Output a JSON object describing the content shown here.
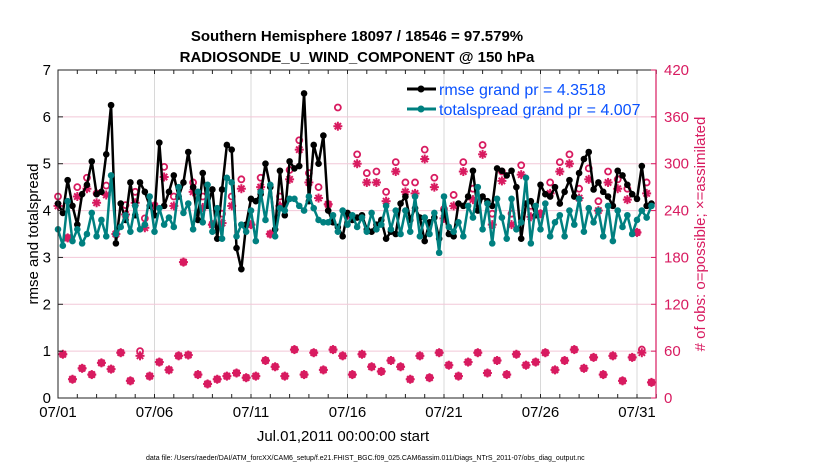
{
  "chart_data": {
    "type": "line",
    "title": [
      "Southern Hemisphere 18097 / 18546 = 97.579%",
      "RADIOSONDE_U_WIND_COMPONENT @ 150 hPa"
    ],
    "xlabel": "Jul.01,2011 00:00:00 start",
    "ylabel": "rmse and totalspread",
    "y2label": "# of obs: o=possible; ×=assimilated",
    "footer": "data file: /Users/raeder/DAI/ATM_forcXX/CAM6_setup/f.e21.FHIST_BGC.f09_025.CAM6assim.011/Diags_NTrS_2011-07/obs_diag_output.nc",
    "x_units": "days since 07/01 00:00 (6-hourly)",
    "x_step_days": 0.25,
    "xlim": [
      0,
      31
    ],
    "xticks": [
      0,
      5,
      10,
      15,
      20,
      25,
      30
    ],
    "xtick_labels": [
      "07/01",
      "07/06",
      "07/11",
      "07/16",
      "07/21",
      "07/26",
      "07/31"
    ],
    "ylim": [
      0,
      7
    ],
    "yticks": [
      0,
      1,
      2,
      3,
      4,
      5,
      6,
      7
    ],
    "y2lim": [
      0,
      420
    ],
    "y2ticks": [
      0,
      60,
      120,
      180,
      240,
      300,
      360,
      420
    ],
    "grid": true,
    "legend_position": "top-right",
    "colors": {
      "rmse": "#000000",
      "totalspread": "#008080",
      "obs": "#d81b60",
      "legend_text": "#0a52ff",
      "grid": "#f2c8d8",
      "vgrid": "#d8d8d8"
    },
    "series": [
      {
        "name": "rmse",
        "legend": "rmse grand pr = 4.3518",
        "values": [
          4.15,
          3.95,
          4.65,
          4.1,
          3.7,
          4.35,
          4.55,
          5.05,
          4.35,
          4.4,
          5.2,
          6.25,
          3.3,
          4.15,
          3.8,
          4.6,
          3.9,
          4.6,
          4.4,
          4.1,
          3.9,
          5.45,
          4.1,
          4.4,
          4.75,
          4.3,
          4.6,
          5.25,
          4.5,
          3.8,
          4.8,
          4.1,
          4.45,
          3.4,
          4.45,
          5.4,
          5.3,
          3.2,
          2.75,
          3.7,
          4.25,
          4.2,
          4.35,
          5.0,
          4.5,
          3.6,
          4.85,
          3.9,
          5.05,
          4.9,
          4.95,
          6.5,
          4.2,
          5.4,
          5.0,
          5.6,
          4.0,
          3.75,
          3.65,
          3.45,
          3.95,
          3.8,
          3.85,
          3.9,
          3.6,
          3.55,
          3.7,
          3.8,
          3.4,
          3.55,
          3.5,
          4.15,
          4.3,
          3.8,
          4.05,
          3.85,
          3.35,
          3.75,
          3.85,
          3.4,
          4.0,
          3.5,
          3.45,
          4.15,
          4.1,
          4.3,
          4.85,
          4.0,
          4.3,
          4.2,
          4.1,
          4.9,
          4.85,
          4.75,
          4.85,
          4.5,
          3.4,
          4.15,
          4.2,
          3.9,
          4.55,
          4.35,
          4.3,
          4.5,
          4.15,
          4.4,
          4.65,
          4.3,
          4.8,
          5.1,
          5.25,
          4.45,
          4.6,
          4.4,
          4.3,
          4.1,
          4.85,
          4.75,
          4.55,
          4.35,
          4.25,
          4.95,
          4.1,
          4.15
        ]
      },
      {
        "name": "totalspread",
        "legend": "totalspread grand pr = 4.007",
        "values": [
          3.6,
          3.25,
          4.2,
          3.35,
          3.6,
          3.3,
          3.5,
          3.95,
          3.45,
          3.8,
          3.45,
          4.75,
          3.5,
          3.65,
          3.9,
          3.55,
          4.1,
          3.6,
          3.7,
          4.3,
          3.55,
          4.05,
          3.7,
          3.85,
          3.65,
          4.5,
          3.95,
          4.15,
          3.6,
          4.4,
          3.75,
          4.55,
          3.55,
          4.05,
          3.4,
          4.7,
          4.6,
          3.45,
          3.7,
          3.55,
          4.0,
          3.35,
          4.4,
          3.8,
          4.55,
          3.45,
          4.05,
          4.0,
          4.25,
          4.25,
          4.1,
          4.0,
          4.3,
          4.05,
          3.8,
          3.75,
          3.75,
          3.9,
          3.55,
          4.0,
          3.7,
          3.9,
          3.65,
          3.85,
          3.55,
          3.95,
          3.6,
          3.7,
          4.1,
          3.6,
          4.0,
          3.5,
          4.0,
          3.55,
          4.3,
          3.45,
          3.85,
          3.5,
          3.95,
          3.1,
          4.3,
          3.65,
          3.55,
          3.75,
          3.45,
          4.1,
          3.85,
          4.5,
          3.6,
          4.15,
          3.3,
          4.25,
          3.85,
          3.4,
          4.25,
          3.6,
          3.75,
          4.7,
          3.3,
          4.1,
          3.6,
          4.15,
          3.45,
          3.75,
          3.9,
          3.45,
          4.0,
          3.7,
          4.25,
          3.55,
          4.05,
          3.75,
          4.0,
          3.45,
          4.1,
          3.35,
          4.0,
          3.65,
          3.9,
          3.5,
          3.8,
          4.0,
          3.85,
          4.1
        ]
      },
      {
        "name": "obs possible",
        "axis": "right",
        "marker": "circle",
        "values": [
          258,
          56,
          205,
          24,
          270,
          38,
          282,
          30,
          262,
          45,
          272,
          37,
          210,
          58,
          247,
          22,
          264,
          60,
          230,
          28,
          246,
          46,
          296,
          36,
          258,
          54,
          174,
          55,
          276,
          30,
          258,
          18,
          222,
          24,
          236,
          28,
          258,
          32,
          280,
          26,
          222,
          28,
          282,
          48,
          210,
          40,
          258,
          28,
          292,
          62,
          330,
          30,
          288,
          58,
          270,
          36,
          248,
          62,
          372,
          54,
          234,
          30,
          312,
          56,
          288,
          40,
          290,
          34,
          264,
          48,
          302,
          40,
          276,
          24,
          276,
          54,
          318,
          26,
          282,
          58,
          242,
          42,
          260,
          28,
          302,
          46,
          268,
          58,
          324,
          32,
          236,
          48,
          290,
          30,
          236,
          56,
          298,
          42,
          246,
          46,
          236,
          58,
          276,
          36,
          302,
          48,
          312,
          62,
          268,
          38,
          294,
          52,
          252,
          30,
          290,
          54,
          280,
          22,
          268,
          52,
          212,
          62,
          276,
          20
        ]
      },
      {
        "name": "obs assimilated",
        "axis": "right",
        "marker": "asterisk",
        "values": [
          246,
          56,
          205,
          24,
          258,
          38,
          268,
          30,
          250,
          45,
          260,
          37,
          210,
          58,
          235,
          22,
          250,
          54,
          218,
          28,
          246,
          46,
          283,
          36,
          246,
          54,
          174,
          55,
          264,
          30,
          244,
          18,
          222,
          24,
          224,
          28,
          246,
          32,
          268,
          26,
          222,
          28,
          270,
          48,
          210,
          40,
          246,
          28,
          280,
          62,
          318,
          30,
          276,
          58,
          256,
          36,
          248,
          62,
          348,
          54,
          234,
          30,
          300,
          56,
          276,
          40,
          276,
          34,
          252,
          48,
          290,
          40,
          264,
          24,
          262,
          54,
          306,
          26,
          270,
          58,
          230,
          42,
          246,
          28,
          290,
          46,
          254,
          58,
          312,
          32,
          222,
          48,
          278,
          30,
          222,
          56,
          286,
          42,
          232,
          46,
          236,
          58,
          262,
          36,
          290,
          48,
          300,
          62,
          256,
          38,
          280,
          52,
          240,
          30,
          276,
          54,
          268,
          22,
          254,
          52,
          212,
          58,
          262,
          20
        ]
      }
    ]
  }
}
